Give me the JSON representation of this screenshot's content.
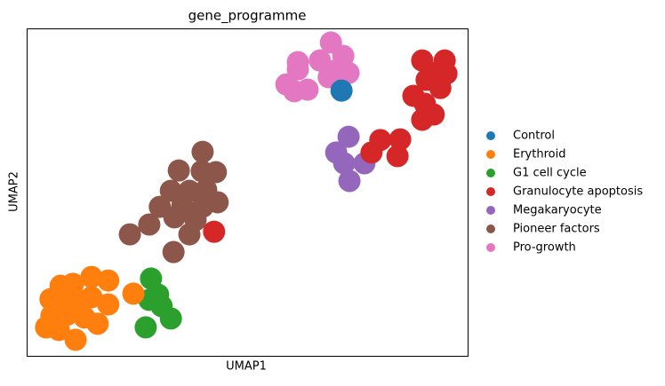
{
  "chart_data": {
    "type": "scatter",
    "title": "gene_programme",
    "x_label": "UMAP1",
    "y_label": "UMAP2",
    "xlim": [
      0,
      100
    ],
    "ylim": [
      0,
      100
    ],
    "legend": "right",
    "series": [
      {
        "name": "Control",
        "color": "#1f77b4",
        "x": [
          71.4
        ],
        "y": [
          81.0
        ]
      },
      {
        "name": "Erythroid",
        "color": "#ff7f0e",
        "x": [
          4.4,
          7.3,
          11.1,
          5.6,
          9.1,
          13.1,
          16.1,
          5.4,
          8.5,
          11.7,
          14.7,
          18.5,
          7.7,
          10.5,
          14.7,
          18.5,
          24.2,
          12.1,
          10.1
        ],
        "y": [
          8.7,
          7.9,
          4.9,
          12.2,
          12.5,
          11.7,
          9.8,
          17.3,
          16.5,
          17.1,
          17.9,
          15.7,
          21.4,
          22.0,
          24.1,
          23.0,
          19.0,
          13.8,
          19.2
        ]
      },
      {
        "name": "G1 cell cycle",
        "color": "#2ca02c",
        "x": [
          28.2,
          27.8,
          30.6,
          32.7,
          27.0,
          29.8
        ],
        "y": [
          23.6,
          17.1,
          15.2,
          11.4,
          8.7,
          18.7
        ]
      },
      {
        "name": "Granulocyte apoptosis",
        "color": "#d62728",
        "x": [
          89.7,
          94.8,
          92.7,
          95.2,
          90.7,
          93.8,
          87.7,
          90.3,
          92.3,
          89.7,
          80.2,
          84.7,
          78.2,
          84.1,
          42.5
        ],
        "y": [
          90.2,
          90.2,
          86.4,
          86.2,
          84.3,
          81.8,
          79.4,
          77.0,
          73.7,
          72.1,
          65.9,
          66.1,
          62.1,
          61.0,
          37.9
        ]
      },
      {
        "name": "Megakaryocyte",
        "color": "#9467bd",
        "x": [
          73.0,
          70.2,
          72.0,
          76.6,
          73.2
        ],
        "y": [
          66.9,
          62.1,
          58.8,
          58.8,
          53.4
        ]
      },
      {
        "name": "Pioneer factors",
        "color": "#8c564b",
        "x": [
          39.9,
          34.5,
          39.7,
          42.9,
          32.7,
          36.9,
          40.7,
          30.2,
          35.3,
          39.9,
          43.3,
          33.5,
          38.3,
          27.8,
          23.4,
          36.9,
          33.3
        ],
        "y": [
          62.3,
          56.6,
          56.4,
          56.1,
          50.4,
          50.4,
          50.7,
          45.5,
          45.8,
          45.5,
          46.9,
          42.3,
          41.5,
          40.1,
          37.1,
          37.1,
          31.7
        ]
      },
      {
        "name": "Pro-growth",
        "color": "#e377c2",
        "x": [
          69.0,
          61.5,
          66.5,
          71.8,
          69.6,
          73.0,
          61.5,
          58.9,
          60.7,
          63.7,
          68.5
        ],
        "y": [
          95.7,
          89.7,
          90.2,
          91.6,
          87.0,
          86.4,
          87.5,
          82.9,
          80.8,
          81.3,
          85.1
        ]
      }
    ]
  }
}
